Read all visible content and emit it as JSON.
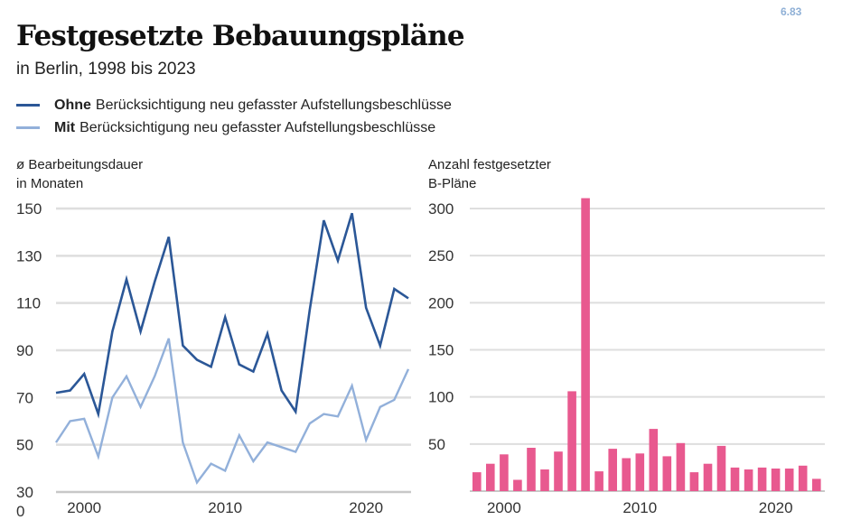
{
  "badge": "6.83",
  "title": "Festgesetzte Bebauungspläne",
  "subtitle": "in Berlin, 1998 bis 2023",
  "legend": [
    {
      "bold": "Ohne",
      "text": "Berücksichtigung neu gefasster Aufstellungsbeschlüsse",
      "color": "#2b5797"
    },
    {
      "bold": "Mit",
      "text": "Berücksichtigung neu gefasster Aufstellungsbeschlüsse",
      "color": "#92b0da"
    }
  ],
  "chart_data": [
    {
      "type": "line",
      "ylabel_line1": "ø Bearbeitungsdauer",
      "ylabel_line2": "in Monaten",
      "x": [
        1998,
        1999,
        2000,
        2001,
        2002,
        2003,
        2004,
        2005,
        2006,
        2007,
        2008,
        2009,
        2010,
        2011,
        2012,
        2013,
        2014,
        2015,
        2016,
        2017,
        2018,
        2019,
        2020,
        2021,
        2022,
        2023
      ],
      "ylim": [
        30,
        150
      ],
      "yticks": [
        "150",
        "130",
        "110",
        "90",
        "70",
        "50",
        "30"
      ],
      "ytick_values": [
        150,
        130,
        110,
        90,
        70,
        50,
        30
      ],
      "extra_tick_label": "0",
      "xticks": [
        "2000",
        "2010",
        "2020"
      ],
      "xtick_values": [
        2000,
        2010,
        2020
      ],
      "grid": true,
      "series": [
        {
          "name": "Ohne Berücksichtigung neu gefasster Aufstellungsbeschlüsse",
          "color": "#2b5797",
          "values": [
            72,
            73,
            80,
            63,
            98,
            120,
            98,
            119,
            138,
            92,
            86,
            83,
            104,
            84,
            81,
            97,
            73,
            64,
            107,
            145,
            128,
            148,
            108,
            92,
            116,
            112
          ]
        },
        {
          "name": "Mit Berücksichtigung neu gefasster Aufstellungsbeschlüsse",
          "color": "#92b0da",
          "values": [
            51,
            60,
            61,
            45,
            70,
            79,
            66,
            79,
            95,
            51,
            34,
            42,
            39,
            54,
            43,
            51,
            49,
            47,
            59,
            63,
            62,
            75,
            52,
            66,
            69,
            82
          ]
        }
      ]
    },
    {
      "type": "bar",
      "ylabel_line1": "Anzahl festgesetzter",
      "ylabel_line2": "B-Pläne",
      "categories": [
        1998,
        1999,
        2000,
        2001,
        2002,
        2003,
        2004,
        2005,
        2006,
        2007,
        2008,
        2009,
        2010,
        2011,
        2012,
        2013,
        2014,
        2015,
        2016,
        2017,
        2018,
        2019,
        2020,
        2021,
        2022,
        2023
      ],
      "values": [
        20,
        29,
        39,
        12,
        46,
        23,
        42,
        106,
        311,
        21,
        45,
        35,
        40,
        66,
        37,
        51,
        20,
        29,
        48,
        25,
        23,
        25,
        24,
        24,
        27,
        13
      ],
      "ylim": [
        0,
        300
      ],
      "yticks": [
        "300",
        "250",
        "200",
        "150",
        "100",
        "50"
      ],
      "ytick_values": [
        300,
        250,
        200,
        150,
        100,
        50
      ],
      "xticks": [
        "2000",
        "2010",
        "2020"
      ],
      "xtick_values": [
        2000,
        2010,
        2020
      ],
      "grid": true,
      "color": "#e8598f"
    }
  ]
}
